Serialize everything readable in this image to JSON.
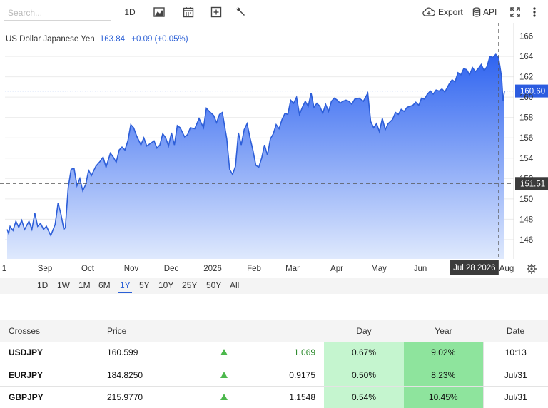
{
  "toolbar": {
    "search_placeholder": "Search...",
    "interval_label": "1D",
    "chart_type_icon": "mountain-chart-icon",
    "calendar_icon": "calendar-icon",
    "add_icon": "plus-box-icon",
    "tools_icon": "wrench-icon",
    "export_label": "Export",
    "export_icon": "cloud-download-icon",
    "api_label": "API",
    "api_icon": "database-icon",
    "fullscreen_icon": "fullscreen-icon",
    "more_icon": "vertical-dots-icon"
  },
  "chart_header": {
    "name": "US Dollar Japanese Yen",
    "price": "163.84",
    "change": "+0.09 (+0.05%)"
  },
  "chart_data": {
    "type": "area",
    "title": "US Dollar Japanese Yen",
    "y_ticks": [
      146,
      148,
      150,
      152,
      154,
      156,
      158,
      160,
      162,
      164,
      166
    ],
    "ylim": [
      144.1,
      167.3
    ],
    "x_tick_labels": [
      "1",
      "Sep",
      "Oct",
      "Nov",
      "Dec",
      "2026",
      "Feb",
      "Mar",
      "Apr",
      "May",
      "Jun",
      "Aug"
    ],
    "points": [
      [
        "Aug 24",
        147.0
      ],
      [
        "Aug 25",
        146.6
      ],
      [
        "Aug 26",
        147.3
      ],
      [
        "Aug 28",
        146.9
      ],
      [
        "Aug 30",
        147.8
      ],
      [
        "Sep 1",
        147.2
      ],
      [
        "Sep 3",
        147.9
      ],
      [
        "Sep 5",
        147.0
      ],
      [
        "Sep 8",
        147.8
      ],
      [
        "Sep 10",
        147.0
      ],
      [
        "Sep 12",
        148.6
      ],
      [
        "Sep 14",
        147.3
      ],
      [
        "Sep 16",
        147.6
      ],
      [
        "Sep 18",
        147.0
      ],
      [
        "Sep 20",
        147.3
      ],
      [
        "Sep 23",
        146.4
      ],
      [
        "Sep 26",
        147.5
      ],
      [
        "Sep 28",
        149.6
      ],
      [
        "Sep 30",
        148.5
      ],
      [
        "Oct 2",
        147.0
      ],
      [
        "Oct 3",
        147.2
      ],
      [
        "Oct 5",
        151.1
      ],
      [
        "Oct 7",
        152.9
      ],
      [
        "Oct 9",
        153.0
      ],
      [
        "Oct 11",
        151.3
      ],
      [
        "Oct 13",
        152.0
      ],
      [
        "Oct 15",
        150.8
      ],
      [
        "Oct 17",
        151.4
      ],
      [
        "Oct 19",
        152.8
      ],
      [
        "Oct 21",
        152.3
      ],
      [
        "Oct 24",
        153.2
      ],
      [
        "Oct 27",
        153.7
      ],
      [
        "Oct 29",
        154.1
      ],
      [
        "Oct 31",
        153.1
      ],
      [
        "Nov 3",
        154.5
      ],
      [
        "Nov 5",
        154.1
      ],
      [
        "Nov 7",
        153.6
      ],
      [
        "Nov 9",
        154.8
      ],
      [
        "Nov 11",
        155.1
      ],
      [
        "Nov 13",
        154.8
      ],
      [
        "Nov 15",
        155.7
      ],
      [
        "Nov 17",
        157.3
      ],
      [
        "Nov 19",
        157.0
      ],
      [
        "Nov 21",
        156.2
      ],
      [
        "Nov 24",
        155.3
      ],
      [
        "Nov 26",
        156.0
      ],
      [
        "Nov 28",
        155.2
      ],
      [
        "Dec 1",
        155.5
      ],
      [
        "Dec 3",
        155.7
      ],
      [
        "Dec 5",
        155.0
      ],
      [
        "Dec 7",
        155.3
      ],
      [
        "Dec 9",
        156.4
      ],
      [
        "Dec 11",
        156.0
      ],
      [
        "Dec 13",
        155.2
      ],
      [
        "Dec 15",
        156.5
      ],
      [
        "Dec 17",
        155.3
      ],
      [
        "Dec 19",
        157.2
      ],
      [
        "Dec 21",
        157.0
      ],
      [
        "Dec 24",
        156.1
      ],
      [
        "Dec 26",
        156.3
      ],
      [
        "Dec 28",
        157.0
      ],
      [
        "Dec 31",
        156.9
      ],
      [
        "Jan 3",
        157.9
      ],
      [
        "Jan 6",
        157.0
      ],
      [
        "Jan 8",
        158.9
      ],
      [
        "Jan 10",
        158.6
      ],
      [
        "Jan 13",
        158.2
      ],
      [
        "Jan 15",
        157.5
      ],
      [
        "Jan 17",
        158.3
      ],
      [
        "Jan 19",
        158.5
      ],
      [
        "Jan 22",
        155.9
      ],
      [
        "Jan 24",
        152.9
      ],
      [
        "Jan 26",
        152.4
      ],
      [
        "Jan 28",
        153.2
      ],
      [
        "Jan 30",
        156.5
      ],
      [
        "Feb 1",
        155.3
      ],
      [
        "Feb 3",
        156.8
      ],
      [
        "Feb 5",
        157.4
      ],
      [
        "Feb 7",
        156.0
      ],
      [
        "Feb 9",
        154.8
      ],
      [
        "Feb 11",
        153.3
      ],
      [
        "Feb 13",
        153.1
      ],
      [
        "Feb 15",
        154.0
      ],
      [
        "Feb 17",
        155.3
      ],
      [
        "Feb 19",
        154.3
      ],
      [
        "Feb 21",
        155.9
      ],
      [
        "Feb 23",
        156.4
      ],
      [
        "Feb 25",
        157.3
      ],
      [
        "Feb 27",
        156.9
      ],
      [
        "Mar 1",
        157.8
      ],
      [
        "Mar 3",
        158.4
      ],
      [
        "Mar 5",
        158.3
      ],
      [
        "Mar 7",
        159.7
      ],
      [
        "Mar 9",
        159.4
      ],
      [
        "Mar 11",
        160.0
      ],
      [
        "Mar 13",
        158.3
      ],
      [
        "Mar 15",
        159.0
      ],
      [
        "Mar 17",
        159.6
      ],
      [
        "Mar 19",
        159.1
      ],
      [
        "Mar 21",
        160.4
      ],
      [
        "Mar 23",
        159.0
      ],
      [
        "Mar 25",
        159.4
      ],
      [
        "Mar 27",
        159.1
      ],
      [
        "Mar 29",
        158.4
      ],
      [
        "Mar 31",
        159.3
      ],
      [
        "Apr 2",
        158.6
      ],
      [
        "Apr 4",
        159.6
      ],
      [
        "Apr 6",
        159.9
      ],
      [
        "Apr 8",
        159.7
      ],
      [
        "Apr 10",
        159.4
      ],
      [
        "Apr 12",
        159.6
      ],
      [
        "Apr 14",
        159.7
      ],
      [
        "Apr 16",
        159.6
      ],
      [
        "Apr 18",
        159.3
      ],
      [
        "Apr 20",
        159.8
      ],
      [
        "Apr 23",
        159.9
      ],
      [
        "Apr 26",
        159.6
      ],
      [
        "Apr 29",
        160.4
      ],
      [
        "May 1",
        157.6
      ],
      [
        "May 3",
        157.0
      ],
      [
        "May 5",
        157.4
      ],
      [
        "May 7",
        156.6
      ],
      [
        "May 9",
        157.9
      ],
      [
        "May 11",
        156.8
      ],
      [
        "May 13",
        157.4
      ],
      [
        "May 16",
        157.8
      ],
      [
        "May 18",
        158.5
      ],
      [
        "May 20",
        158.3
      ],
      [
        "May 22",
        158.8
      ],
      [
        "May 24",
        158.6
      ],
      [
        "May 26",
        159.0
      ],
      [
        "May 28",
        159.1
      ],
      [
        "May 30",
        159.2
      ],
      [
        "Jun 1",
        159.5
      ],
      [
        "Jun 3",
        159.2
      ],
      [
        "Jun 5",
        159.9
      ],
      [
        "Jun 7",
        159.8
      ],
      [
        "Jun 9",
        160.3
      ],
      [
        "Jun 11",
        160.6
      ],
      [
        "Jun 13",
        160.3
      ],
      [
        "Jun 15",
        160.7
      ],
      [
        "Jun 17",
        160.6
      ],
      [
        "Jun 19",
        160.8
      ],
      [
        "Jun 21",
        160.5
      ],
      [
        "Jun 24",
        161.3
      ],
      [
        "Jun 26",
        161.7
      ],
      [
        "Jun 28",
        161.5
      ],
      [
        "Jun 30",
        162.4
      ],
      [
        "Jul 2",
        162.2
      ],
      [
        "Jul 4",
        162.8
      ],
      [
        "Jul 6",
        162.7
      ],
      [
        "Jul 8",
        162.2
      ],
      [
        "Jul 10",
        162.9
      ],
      [
        "Jul 12",
        162.5
      ],
      [
        "Jul 14",
        162.8
      ],
      [
        "Jul 16",
        163.2
      ],
      [
        "Jul 18",
        162.6
      ],
      [
        "Jul 20",
        163.0
      ],
      [
        "Jul 22",
        164.0
      ],
      [
        "Jul 24",
        163.9
      ],
      [
        "Jul 26",
        164.2
      ],
      [
        "Jul 28",
        163.85
      ],
      [
        "Jul 30",
        162.0
      ],
      [
        "Jul 31",
        159.6
      ],
      [
        "Aug 1",
        160.6
      ]
    ],
    "last_value_label": "160.60",
    "crosshair_value_label": "151.51",
    "crosshair_date_label": "Jul 28 2026",
    "grid": true,
    "colors": {
      "line": "#2d5ed8",
      "fill_top": "#2e63f0",
      "fill_bottom": "#dfe9fd",
      "label_bg": "#2c5ce0",
      "crosshair_label_bg": "#3b3b3b"
    }
  },
  "range_buttons": [
    "1D",
    "1W",
    "1M",
    "6M",
    "1Y",
    "5Y",
    "10Y",
    "25Y",
    "50Y",
    "All"
  ],
  "range_active": "1Y",
  "crosses": {
    "headers": {
      "symbol": "Crosses",
      "price": "Price",
      "day": "Day",
      "year": "Year",
      "date": "Date"
    },
    "rows": [
      {
        "symbol": "USDJPY",
        "price": "160.599",
        "change": "1.069",
        "day": "0.67%",
        "year": "9.02%",
        "date": "10:13",
        "change_positive": true
      },
      {
        "symbol": "EURJPY",
        "price": "184.8250",
        "change": "0.9175",
        "day": "0.50%",
        "year": "8.23%",
        "date": "Jul/31",
        "change_positive": false
      },
      {
        "symbol": "GBPJPY",
        "price": "215.9770",
        "change": "1.1548",
        "day": "0.54%",
        "year": "10.45%",
        "date": "Jul/31",
        "change_positive": false
      }
    ],
    "colors": {
      "up_arrow": "#4cb84c",
      "positive_text": "#2e8b2e",
      "day_bg": "#c5f5cf",
      "year_bg": "#8ee49d"
    }
  }
}
